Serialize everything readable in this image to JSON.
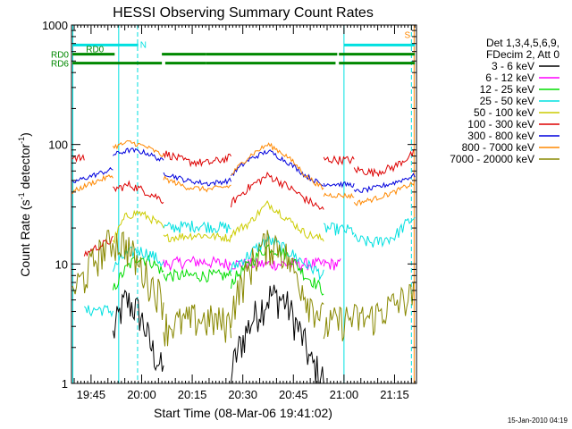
{
  "chart_data": {
    "type": "line",
    "title": "HESSI Observing Summary Count Rates",
    "xlabel": "Start Time (08-Mar-06 19:41:02)",
    "ylabel_parts": [
      "Count Rate (s",
      "-1",
      " detector",
      "-1",
      ")"
    ],
    "ylim": [
      1,
      1000
    ],
    "yscale": "log",
    "xlim_minutes": [
      39.2,
      141.5
    ],
    "xtick_minutes": [
      45,
      60,
      75,
      90,
      105,
      120,
      135
    ],
    "xtick_labels": [
      "19:45",
      "20:00",
      "20:15",
      "20:30",
      "20:45",
      "21:00",
      "21:15"
    ],
    "yticks": [
      1,
      10,
      100,
      1000
    ],
    "ytick_labels": [
      "1",
      "10",
      "100",
      "1000"
    ],
    "legend_header": [
      "Det 1,3,4,5,6,9,",
      "FDecim 2, Att 0"
    ],
    "series": [
      {
        "name": "3 - 6 keV",
        "color": "#000000",
        "noise": 0.35,
        "segments": [
          {
            "from": 43.0,
            "to": 51.5,
            "y": [
              1.0,
              1.0
            ],
            "offscale": true
          },
          {
            "from": 51.5,
            "to": 66.5,
            "y": [
              2.5,
              5.0,
              4.0,
              2.0,
              1.2
            ]
          },
          {
            "from": 66.5,
            "to": 86.5,
            "y": [
              1.0,
              1.0
            ],
            "offscale": true
          },
          {
            "from": 86.5,
            "to": 114.0,
            "y": [
              1.2,
              2.5,
              4.0,
              5.5,
              5.0,
              3.0,
              1.5,
              1.1
            ]
          }
        ]
      },
      {
        "name": "6 - 12 keV",
        "color": "#ff00ff",
        "noise": 0.12,
        "segments": [
          {
            "from": 66.5,
            "to": 86.5,
            "y": [
              10.0,
              10.5,
              10.0
            ]
          },
          {
            "from": 86.5,
            "to": 114.0,
            "y": [
              10.0,
              10.0
            ]
          },
          {
            "from": 114.0,
            "to": 119.0,
            "y": [
              10.0,
              10.0
            ]
          }
        ]
      },
      {
        "name": "12 - 25 keV",
        "color": "#00dd00",
        "noise": 0.12,
        "segments": [
          {
            "from": 51.5,
            "to": 66.5,
            "y": [
              6.0,
              9.0,
              11.5,
              10.5,
              8.5
            ]
          },
          {
            "from": 66.5,
            "to": 86.5,
            "y": [
              8.0,
              8.0
            ]
          },
          {
            "from": 86.5,
            "to": 114.0,
            "y": [
              7.0,
              10.0,
              14.0,
              12.0,
              8.0,
              6.0
            ]
          }
        ]
      },
      {
        "name": "25 - 50 keV",
        "color": "#00e0e0",
        "noise": 0.12,
        "segments": [
          {
            "from": 43.0,
            "to": 51.5,
            "y": [
              4.0,
              4.2,
              4.0
            ]
          },
          {
            "from": 51.5,
            "to": 66.5,
            "y": [
              9.0,
              12.0,
              13.0,
              12.0,
              10.0
            ]
          },
          {
            "from": 66.5,
            "to": 86.5,
            "y": [
              20.0,
              21.0,
              20.0
            ]
          },
          {
            "from": 86.5,
            "to": 114.0,
            "y": [
              9.0,
              12.0,
              16.0,
              13.0,
              10.0,
              8.0
            ]
          },
          {
            "from": 114.0,
            "to": 123.0,
            "y": [
              20.0,
              19.0
            ]
          },
          {
            "from": 123.0,
            "to": 141.0,
            "y": [
              16.0,
              15.0,
              17.0,
              25.0
            ]
          }
        ]
      },
      {
        "name": "50 - 100 keV",
        "color": "#cccc00",
        "noise": 0.08,
        "segments": [
          {
            "from": 51.5,
            "to": 66.5,
            "y": [
              15.0,
              25.0,
              27.0,
              24.0,
              20.0
            ]
          },
          {
            "from": 66.5,
            "to": 86.5,
            "y": [
              16.5,
              17.5,
              16.5
            ]
          },
          {
            "from": 86.5,
            "to": 114.0,
            "y": [
              18.0,
              22.0,
              32.0,
              24.0,
              18.0,
              16.0
            ]
          }
        ]
      },
      {
        "name": "100 - 300 keV",
        "color": "#dd0000",
        "noise": 0.08,
        "segments": [
          {
            "from": 39.5,
            "to": 43.0,
            "y": [
              80.0,
              75.0
            ]
          },
          {
            "from": 43.0,
            "to": 51.5,
            "y": [
              12.0,
              14.0,
              16.0
            ]
          },
          {
            "from": 51.5,
            "to": 66.5,
            "y": [
              42.0,
              46.0,
              40.0,
              34.0
            ]
          },
          {
            "from": 66.5,
            "to": 86.5,
            "y": [
              85.0,
              72.0,
              70.0,
              78.0
            ]
          },
          {
            "from": 86.5,
            "to": 114.0,
            "y": [
              32.0,
              44.0,
              55.0,
              45.0,
              35.0,
              28.0
            ]
          },
          {
            "from": 114.0,
            "to": 123.0,
            "y": [
              75.0,
              74.0
            ]
          },
          {
            "from": 123.0,
            "to": 141.0,
            "y": [
              62.0,
              58.0,
              65.0,
              85.0
            ]
          }
        ]
      },
      {
        "name": "300 - 800 keV",
        "color": "#0000dd",
        "noise": 0.05,
        "segments": [
          {
            "from": 39.5,
            "to": 51.5,
            "y": [
              48.0,
              55.0,
              62.0
            ]
          },
          {
            "from": 51.5,
            "to": 66.5,
            "y": [
              82.0,
              90.0,
              85.0,
              72.0
            ]
          },
          {
            "from": 66.5,
            "to": 86.5,
            "y": [
              58.0,
              50.0,
              47.0,
              50.0
            ]
          },
          {
            "from": 86.5,
            "to": 114.0,
            "y": [
              55.0,
              75.0,
              88.0,
              72.0,
              55.0,
              45.0
            ]
          },
          {
            "from": 114.0,
            "to": 123.0,
            "y": [
              47.0,
              46.0
            ]
          },
          {
            "from": 123.0,
            "to": 141.0,
            "y": [
              40.0,
              43.0,
              48.0,
              55.0
            ]
          }
        ]
      },
      {
        "name": "800 - 7000 keV",
        "color": "#ff8800",
        "noise": 0.05,
        "segments": [
          {
            "from": 39.5,
            "to": 51.5,
            "y": [
              40.0,
              48.0,
              55.0
            ]
          },
          {
            "from": 51.5,
            "to": 66.5,
            "y": [
              95.0,
              105.0,
              95.0,
              80.0
            ]
          },
          {
            "from": 66.5,
            "to": 86.5,
            "y": [
              52.0,
              44.0,
              42.0,
              45.0
            ]
          },
          {
            "from": 86.5,
            "to": 114.0,
            "y": [
              55.0,
              80.0,
              100.0,
              80.0,
              55.0,
              42.0
            ]
          },
          {
            "from": 114.0,
            "to": 123.0,
            "y": [
              38.0,
              37.0
            ]
          },
          {
            "from": 123.0,
            "to": 141.0,
            "y": [
              32.0,
              35.0,
              40.0,
              48.0
            ]
          }
        ]
      },
      {
        "name": "7000 - 20000 keV",
        "color": "#888800",
        "noise": 0.35,
        "segments": [
          {
            "from": 39.5,
            "to": 66.5,
            "y": [
              6.0,
              8.0,
              12.0,
              15.5,
              15.0,
              10.0,
              7.0,
              5.0
            ]
          },
          {
            "from": 66.5,
            "to": 86.5,
            "y": [
              3.0,
              3.5,
              3.2
            ]
          },
          {
            "from": 86.5,
            "to": 114.0,
            "y": [
              4.0,
              8.0,
              14.0,
              15.0,
              9.0,
              5.0,
              3.5
            ]
          },
          {
            "from": 114.0,
            "to": 141.0,
            "y": [
              3.0,
              3.5,
              3.5,
              4.5,
              5.5
            ]
          }
        ]
      }
    ],
    "flag_bars": [
      {
        "label": "RD0",
        "color": "#008800",
        "y": 570,
        "intervals": [
          [
            39.5,
            52.0
          ],
          [
            66.0,
            79.0
          ],
          [
            79.0,
            118.0
          ],
          [
            118.5,
            141.0
          ]
        ]
      },
      {
        "label": "RD6",
        "color": "#008800",
        "y": 480,
        "intervals": [
          [
            39.5,
            66.0
          ],
          [
            67.0,
            79.0
          ],
          [
            79.0,
            117.5
          ],
          [
            118.5,
            141.0
          ]
        ]
      },
      {
        "label": "",
        "color": "#00e0e0",
        "y": 680,
        "intervals": [
          [
            39.5,
            59.0
          ],
          [
            120.0,
            141.0
          ]
        ]
      }
    ],
    "flag_labels": [
      {
        "text": "N",
        "color": "#00e0e0",
        "x": 60.5,
        "y": 680
      },
      {
        "text": "S",
        "color": "#ff8800",
        "x": 138.8,
        "y": 820
      }
    ],
    "vlines": [
      {
        "x": 39.6,
        "style": "solid"
      },
      {
        "x": 53.2,
        "style": "solid"
      },
      {
        "x": 58.8,
        "style": "dashed"
      },
      {
        "x": 120.0,
        "style": "solid"
      },
      {
        "x": 140.0,
        "style": "dashed"
      },
      {
        "x": 140.8,
        "style": "solid",
        "color": "#ff8800"
      }
    ],
    "vline_color": "#00e0e0",
    "footer_date": "15-Jan-2010 04:19"
  }
}
